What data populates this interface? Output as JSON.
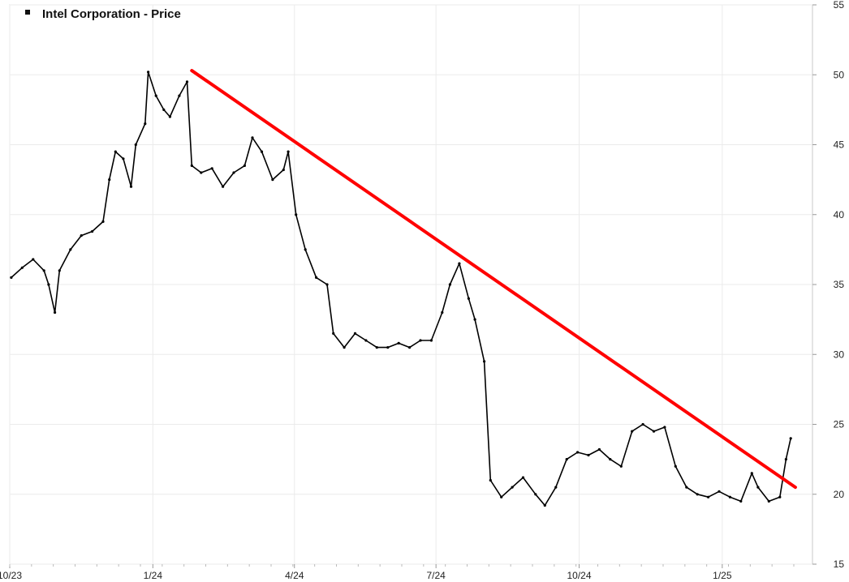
{
  "chart_data": {
    "type": "line",
    "title": "Intel Corporation - Price",
    "xlabel": "",
    "ylabel": "",
    "legend": {
      "position": "top-left",
      "entries": [
        "Intel Corporation - Price"
      ]
    },
    "grid": true,
    "ylim": [
      15,
      55
    ],
    "xlim": [
      "2023-10-01",
      "2025-02-28"
    ],
    "y_ticks": [
      15,
      20,
      25,
      30,
      35,
      40,
      45,
      50,
      55
    ],
    "x_ticks": [
      {
        "date": "2023-10-01",
        "label": "10/23"
      },
      {
        "date": "2024-01-01",
        "label": "1/24"
      },
      {
        "date": "2024-04-01",
        "label": "4/24"
      },
      {
        "date": "2024-07-01",
        "label": "7/24"
      },
      {
        "date": "2024-10-01",
        "label": "10/24"
      },
      {
        "date": "2025-01-01",
        "label": "1/25"
      }
    ],
    "series": [
      {
        "name": "Intel Corporation - Price",
        "color": "#000000",
        "points": [
          [
            "2023-10-02",
            35.5
          ],
          [
            "2023-10-09",
            36.2
          ],
          [
            "2023-10-16",
            36.8
          ],
          [
            "2023-10-23",
            36.0
          ],
          [
            "2023-10-26",
            35.0
          ],
          [
            "2023-10-30",
            33.0
          ],
          [
            "2023-11-02",
            36.0
          ],
          [
            "2023-11-09",
            37.5
          ],
          [
            "2023-11-16",
            38.5
          ],
          [
            "2023-11-23",
            38.8
          ],
          [
            "2023-11-30",
            39.5
          ],
          [
            "2023-12-04",
            42.5
          ],
          [
            "2023-12-08",
            44.5
          ],
          [
            "2023-12-13",
            44.0
          ],
          [
            "2023-12-18",
            42.0
          ],
          [
            "2023-12-21",
            45.0
          ],
          [
            "2023-12-27",
            46.5
          ],
          [
            "2023-12-29",
            50.2
          ],
          [
            "2024-01-03",
            48.5
          ],
          [
            "2024-01-08",
            47.5
          ],
          [
            "2024-01-12",
            47.0
          ],
          [
            "2024-01-18",
            48.5
          ],
          [
            "2024-01-23",
            49.5
          ],
          [
            "2024-01-26",
            43.5
          ],
          [
            "2024-02-01",
            43.0
          ],
          [
            "2024-02-08",
            43.3
          ],
          [
            "2024-02-15",
            42.0
          ],
          [
            "2024-02-22",
            43.0
          ],
          [
            "2024-02-29",
            43.5
          ],
          [
            "2024-03-05",
            45.5
          ],
          [
            "2024-03-11",
            44.5
          ],
          [
            "2024-03-18",
            42.5
          ],
          [
            "2024-03-25",
            43.2
          ],
          [
            "2024-03-28",
            44.5
          ],
          [
            "2024-04-02",
            40.0
          ],
          [
            "2024-04-08",
            37.5
          ],
          [
            "2024-04-15",
            35.5
          ],
          [
            "2024-04-22",
            35.0
          ],
          [
            "2024-04-26",
            31.5
          ],
          [
            "2024-05-03",
            30.5
          ],
          [
            "2024-05-10",
            31.5
          ],
          [
            "2024-05-17",
            31.0
          ],
          [
            "2024-05-24",
            30.5
          ],
          [
            "2024-05-31",
            30.5
          ],
          [
            "2024-06-07",
            30.8
          ],
          [
            "2024-06-14",
            30.5
          ],
          [
            "2024-06-21",
            31.0
          ],
          [
            "2024-06-28",
            31.0
          ],
          [
            "2024-07-05",
            33.0
          ],
          [
            "2024-07-10",
            35.0
          ],
          [
            "2024-07-16",
            36.5
          ],
          [
            "2024-07-22",
            34.0
          ],
          [
            "2024-07-26",
            32.5
          ],
          [
            "2024-08-01",
            29.5
          ],
          [
            "2024-08-05",
            21.0
          ],
          [
            "2024-08-12",
            19.8
          ],
          [
            "2024-08-19",
            20.5
          ],
          [
            "2024-08-26",
            21.2
          ],
          [
            "2024-09-03",
            20.0
          ],
          [
            "2024-09-09",
            19.2
          ],
          [
            "2024-09-16",
            20.5
          ],
          [
            "2024-09-23",
            22.5
          ],
          [
            "2024-09-30",
            23.0
          ],
          [
            "2024-10-07",
            22.8
          ],
          [
            "2024-10-14",
            23.2
          ],
          [
            "2024-10-21",
            22.5
          ],
          [
            "2024-10-28",
            22.0
          ],
          [
            "2024-11-04",
            24.5
          ],
          [
            "2024-11-11",
            25.0
          ],
          [
            "2024-11-18",
            24.5
          ],
          [
            "2024-11-25",
            24.8
          ],
          [
            "2024-12-02",
            22.0
          ],
          [
            "2024-12-09",
            20.5
          ],
          [
            "2024-12-16",
            20.0
          ],
          [
            "2024-12-23",
            19.8
          ],
          [
            "2024-12-30",
            20.2
          ],
          [
            "2025-01-06",
            19.8
          ],
          [
            "2025-01-13",
            19.5
          ],
          [
            "2025-01-20",
            21.5
          ],
          [
            "2025-01-24",
            20.5
          ],
          [
            "2025-01-31",
            19.5
          ],
          [
            "2025-02-07",
            19.8
          ],
          [
            "2025-02-11",
            22.5
          ],
          [
            "2025-02-14",
            24.0
          ]
        ]
      },
      {
        "name": "",
        "color": "#ff0000",
        "points": [
          [
            "2024-01-26",
            50.3
          ],
          [
            "2025-02-17",
            20.5
          ]
        ]
      }
    ]
  }
}
